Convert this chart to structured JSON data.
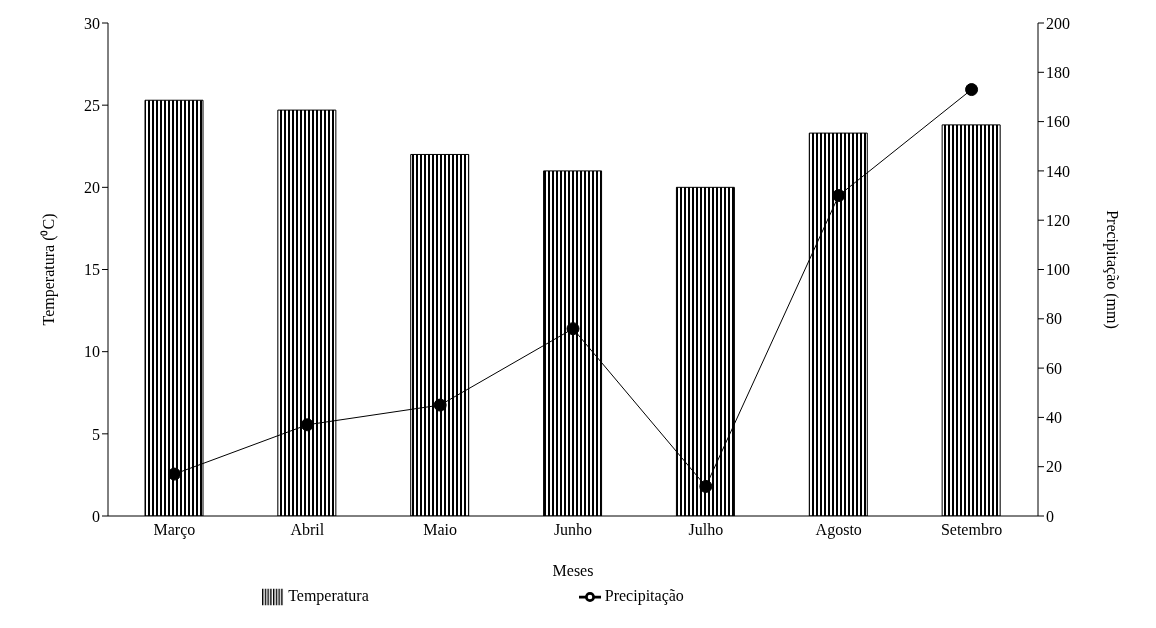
{
  "chart_data": {
    "type": "bar",
    "xlabel": "Meses",
    "ylabel": "Temperatura (⁰C)",
    "y2label": "Precipitação (mm)",
    "categories": [
      "Março",
      "Abril",
      "Maio",
      "Junho",
      "Julho",
      "Agosto",
      "Setembro"
    ],
    "series": [
      {
        "name": "Temperatura",
        "color": "#000000",
        "values": [
          25.3,
          24.7,
          22.0,
          21.0,
          20.0,
          23.3,
          23.8
        ]
      },
      {
        "name": "Precipitação",
        "type": "line",
        "axis": "y2",
        "color": "#000000",
        "marker": "circle",
        "line_style": "solid",
        "values": [
          17,
          37,
          45,
          76,
          12,
          130,
          173
        ]
      }
    ],
    "ylim": [
      0,
      30
    ],
    "yticks": [
      0,
      5,
      10,
      15,
      20,
      25,
      30
    ],
    "y2lim": [
      0,
      200
    ],
    "y2ticks": [
      0,
      20,
      40,
      60,
      80,
      100,
      120,
      140,
      160,
      180,
      200
    ],
    "grid": false,
    "legend": "bottom"
  }
}
